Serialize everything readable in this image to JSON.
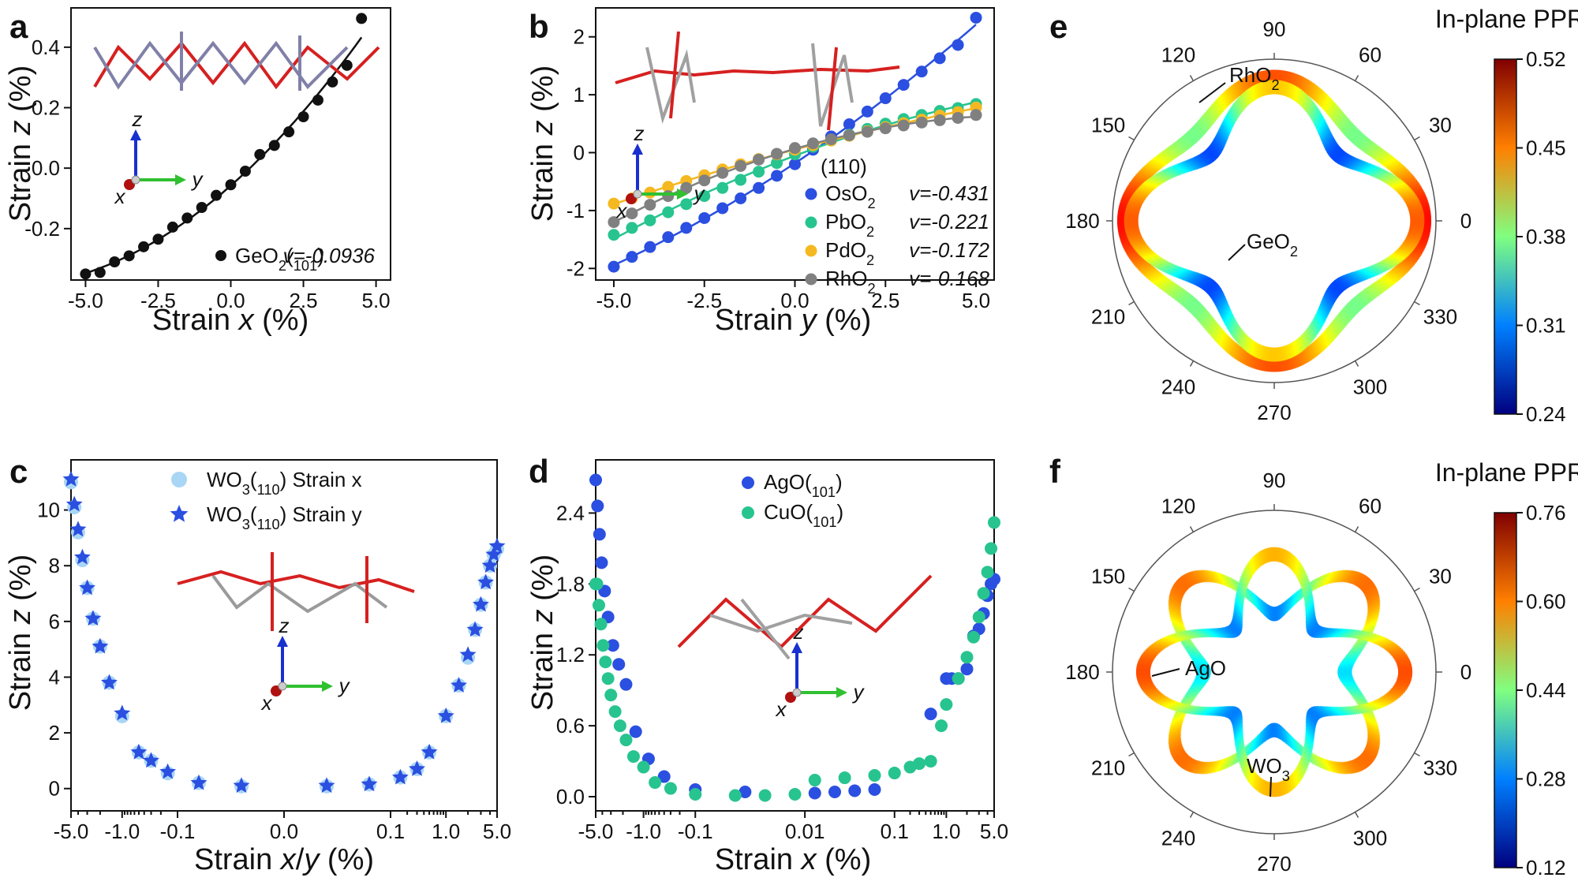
{
  "chart_data": [
    {
      "panel": "a",
      "type": "scatter",
      "xlabel": "Strain x (%)",
      "ylabel": "Strain z (%)",
      "xlim": [
        -5.5,
        5.5
      ],
      "ylim": [
        -0.37,
        0.53
      ],
      "xticks": [
        "-5.0",
        "-2.5",
        "0.0",
        "2.5",
        "5.0"
      ],
      "yticks": [
        "-0.2",
        "0.0",
        "0.2",
        "0.4"
      ],
      "legend": [
        {
          "label": "GeO2(101)",
          "nu": "v=-0.0936",
          "color": "#111111"
        }
      ],
      "series": [
        {
          "name": "GeO2(101)",
          "color": "#111111",
          "x": [
            -5.0,
            -4.5,
            -4.0,
            -3.5,
            -3.0,
            -2.5,
            -2.0,
            -1.5,
            -1.0,
            -0.5,
            0.0,
            0.5,
            1.0,
            1.5,
            2.0,
            2.5,
            3.0,
            3.5,
            4.0,
            4.5
          ],
          "y": [
            -0.35,
            -0.345,
            -0.31,
            -0.29,
            -0.26,
            -0.235,
            -0.195,
            -0.165,
            -0.13,
            -0.09,
            -0.055,
            -0.01,
            0.045,
            0.075,
            0.12,
            0.17,
            0.225,
            0.285,
            0.34,
            0.495
          ],
          "fit": true
        }
      ],
      "axes_labels": {
        "z": "z",
        "x": "x",
        "y": "y"
      }
    },
    {
      "panel": "b",
      "type": "scatter",
      "xlabel": "Strain y (%)",
      "ylabel": "Strain z (%)",
      "xlim": [
        -5.5,
        5.5
      ],
      "ylim": [
        -2.2,
        2.5
      ],
      "xticks": [
        "-5.0",
        "-2.5",
        "0.0",
        "2.5",
        "5.0"
      ],
      "yticks": [
        "-2",
        "-1",
        "0",
        "1",
        "2"
      ],
      "legend_title": "(110)",
      "series": [
        {
          "name": "OsO2",
          "nu": "v=-0.431",
          "color": "#2b4fe0",
          "x": [
            -5,
            -4.5,
            -4,
            -3.5,
            -3,
            -2.5,
            -2,
            -1.5,
            -1,
            -0.5,
            0,
            0.5,
            1,
            1.5,
            2,
            2.5,
            3,
            3.5,
            4,
            4.5,
            5
          ],
          "y": [
            -1.97,
            -1.8,
            -1.63,
            -1.46,
            -1.3,
            -1.13,
            -0.96,
            -0.79,
            -0.61,
            -0.4,
            -0.2,
            0.05,
            0.28,
            0.49,
            0.71,
            0.94,
            1.17,
            1.4,
            1.63,
            1.86,
            2.33
          ]
        },
        {
          "name": "PbO2",
          "nu": "v=-0.221",
          "color": "#27c48f",
          "x": [
            -5,
            -4.5,
            -4,
            -3.5,
            -3,
            -2.5,
            -2,
            -1.5,
            -1,
            -0.5,
            0,
            0.5,
            1,
            1.5,
            2,
            2.5,
            3,
            3.5,
            4,
            4.5,
            5
          ],
          "y": [
            -1.42,
            -1.3,
            -1.17,
            -1.03,
            -0.89,
            -0.75,
            -0.61,
            -0.47,
            -0.33,
            -0.18,
            -0.03,
            0.1,
            0.21,
            0.31,
            0.41,
            0.5,
            0.58,
            0.65,
            0.72,
            0.77,
            0.84
          ]
        },
        {
          "name": "PdO2",
          "nu": "v=-0.172",
          "color": "#f5b820",
          "x": [
            -5,
            -4.5,
            -4,
            -3.5,
            -3,
            -2.5,
            -2,
            -1.5,
            -1,
            -0.5,
            0,
            0.5,
            1,
            1.5,
            2,
            2.5,
            3,
            3.5,
            4,
            4.5,
            5
          ],
          "y": [
            -0.88,
            -0.79,
            -0.69,
            -0.59,
            -0.49,
            -0.39,
            -0.29,
            -0.2,
            -0.11,
            -0.03,
            0.05,
            0.13,
            0.21,
            0.29,
            0.37,
            0.44,
            0.51,
            0.57,
            0.64,
            0.7,
            0.78
          ]
        },
        {
          "name": "RhO2",
          "nu": "v=-0.168",
          "color": "#808080",
          "x": [
            -5,
            -4.5,
            -4,
            -3.5,
            -3,
            -2.5,
            -2,
            -1.5,
            -1,
            -0.5,
            0,
            0.5,
            1,
            1.5,
            2,
            2.5,
            3,
            3.5,
            4,
            4.5,
            5
          ],
          "y": [
            -1.2,
            -1.05,
            -0.9,
            -0.75,
            -0.61,
            -0.48,
            -0.35,
            -0.23,
            -0.12,
            -0.02,
            0.08,
            0.16,
            0.23,
            0.3,
            0.36,
            0.42,
            0.47,
            0.52,
            0.56,
            0.6,
            0.65
          ]
        }
      ],
      "axes_labels": {
        "z": "z",
        "x": "x",
        "y": "y"
      }
    },
    {
      "panel": "c",
      "type": "scatter",
      "xlabel": "Strain x/y (%)",
      "ylabel": "Strain z (%)",
      "xscale": "symlog",
      "ylim": [
        -0.8,
        11.8
      ],
      "xticks": [
        "-5.0",
        "-1.0",
        "-0.1",
        "0.0",
        "0.1",
        "1.0",
        "5.0"
      ],
      "yticks": [
        "0",
        "2",
        "4",
        "6",
        "8",
        "10"
      ],
      "series": [
        {
          "name": "WO3(110) Strain x",
          "marker": "circle",
          "color": "#a9d6f5",
          "x": [
            -5,
            -4.5,
            -4,
            -3.5,
            -3,
            -2.5,
            -2,
            -1.5,
            -1,
            -0.5,
            -0.3,
            -0.15,
            -0.08,
            -0.04,
            0.04,
            0.08,
            0.15,
            0.3,
            0.5,
            1,
            1.5,
            2,
            2.5,
            3,
            3.5,
            4,
            4.5,
            5
          ],
          "y": [
            11.0,
            10.1,
            9.2,
            8.2,
            7.2,
            6.1,
            5.1,
            3.8,
            2.6,
            1.3,
            1.0,
            0.55,
            0.2,
            0.08,
            0.08,
            0.15,
            0.4,
            0.7,
            1.3,
            2.6,
            3.7,
            4.7,
            5.7,
            6.6,
            7.4,
            8.0,
            8.4,
            8.6
          ]
        },
        {
          "name": "WO3(110) Strain y",
          "marker": "star",
          "color": "#2b4fe0",
          "x": [
            -5,
            -4.5,
            -4,
            -3.5,
            -3,
            -2.5,
            -2,
            -1.5,
            -1,
            -0.5,
            -0.3,
            -0.15,
            -0.08,
            -0.04,
            0.04,
            0.08,
            0.15,
            0.3,
            0.5,
            1,
            1.5,
            2,
            2.5,
            3,
            3.5,
            4,
            4.5,
            5
          ],
          "y": [
            11.1,
            10.2,
            9.3,
            8.3,
            7.2,
            6.1,
            5.1,
            3.8,
            2.7,
            1.3,
            1.0,
            0.6,
            0.2,
            0.1,
            0.1,
            0.15,
            0.4,
            0.7,
            1.3,
            2.6,
            3.7,
            4.8,
            5.7,
            6.6,
            7.4,
            8.0,
            8.4,
            8.7
          ]
        }
      ],
      "axes_labels": {
        "z": "z",
        "x": "x",
        "y": "y"
      }
    },
    {
      "panel": "d",
      "type": "scatter",
      "xlabel": "Strain x (%)",
      "ylabel": "Strain z (%)",
      "xscale": "symlog",
      "ylim": [
        -0.12,
        2.85
      ],
      "xticks": [
        "-5.0",
        "-1.0",
        "-0.1",
        "0.01",
        "0.1",
        "1.0",
        "5.0"
      ],
      "yticks": [
        "0.0",
        "0.6",
        "1.2",
        "1.8",
        "2.4"
      ],
      "series": [
        {
          "name": "AgO(101)",
          "color": "#2b4fe0",
          "x": [
            -5,
            -4.7,
            -4.4,
            -4.1,
            -3.7,
            -3.3,
            -2.8,
            -2.3,
            -1.8,
            -1.3,
            -0.8,
            -0.4,
            -0.1,
            -0.05,
            0.02,
            0.04,
            0.06,
            0.08,
            0.5,
            1,
            1.2,
            1.5,
            2,
            2.5,
            3,
            3.5,
            4,
            4.5,
            5
          ],
          "y": [
            2.68,
            2.46,
            2.22,
            1.98,
            1.74,
            1.52,
            1.28,
            1.12,
            0.95,
            0.55,
            0.32,
            0.17,
            0.06,
            0.04,
            0.03,
            0.04,
            0.05,
            0.06,
            0.7,
            1.0,
            1.0,
            1.0,
            1.08,
            1.36,
            1.42,
            1.55,
            1.7,
            1.8,
            1.84
          ]
        },
        {
          "name": "CuO(101)",
          "color": "#27c48f",
          "x": [
            -5,
            -4.8,
            -4.5,
            -4.2,
            -3.9,
            -3.6,
            -3.3,
            -3,
            -2.6,
            -2.2,
            -1.8,
            -1.4,
            -1,
            -0.6,
            -0.3,
            -0.1,
            -0.06,
            -0.03,
            0,
            0.02,
            0.05,
            0.08,
            0.1,
            0.2,
            0.3,
            0.5,
            0.8,
            1,
            1.5,
            2,
            2.5,
            3,
            3.5,
            4,
            4.5,
            5
          ],
          "y": [
            1.8,
            1.8,
            1.62,
            1.46,
            1.28,
            1.14,
            1.0,
            0.86,
            0.72,
            0.6,
            0.48,
            0.34,
            0.25,
            0.12,
            0.07,
            0.02,
            0.01,
            0.01,
            0.02,
            0.14,
            0.16,
            0.18,
            0.2,
            0.25,
            0.28,
            0.3,
            0.6,
            0.78,
            1.0,
            1.18,
            1.35,
            1.52,
            1.72,
            1.9,
            2.1,
            2.32
          ]
        }
      ],
      "axes_labels": {
        "z": "z",
        "x": "x",
        "y": "y"
      }
    },
    {
      "panel": "e",
      "type": "polar",
      "title": "In-plane PPR",
      "angle_ticks": [
        "0",
        "30",
        "60",
        "90",
        "120",
        "150",
        "180",
        "210",
        "240",
        "270",
        "300",
        "330"
      ],
      "colorbar": {
        "min": 0.24,
        "max": 0.52,
        "ticks": [
          "0.52",
          "0.45",
          "0.38",
          "0.31",
          "0.24"
        ]
      },
      "series": [
        {
          "name": "RhO2",
          "r0": 0.425,
          "a4": 0.095,
          "label": "RhO2"
        },
        {
          "name": "GeO2",
          "r0": 0.37,
          "a4": 0.15,
          "label": "GeO2"
        }
      ],
      "rmax": 0.52
    },
    {
      "panel": "f",
      "type": "polar",
      "title": "In-plane PPR",
      "angle_ticks": [
        "0",
        "30",
        "60",
        "90",
        "120",
        "150",
        "180",
        "210",
        "240",
        "270",
        "300",
        "330"
      ],
      "colorbar": {
        "min": 0.12,
        "max": 0.76,
        "ticks": [
          "0.76",
          "0.60",
          "0.44",
          "0.28",
          "0.12"
        ]
      },
      "series": [
        {
          "name": "AgO",
          "r0": 0.46,
          "a4": -0.3,
          "label": "AgO"
        },
        {
          "name": "WO3",
          "r0": 0.44,
          "a4": 0.32,
          "label": "WO3"
        }
      ],
      "rmax": 0.78
    }
  ]
}
